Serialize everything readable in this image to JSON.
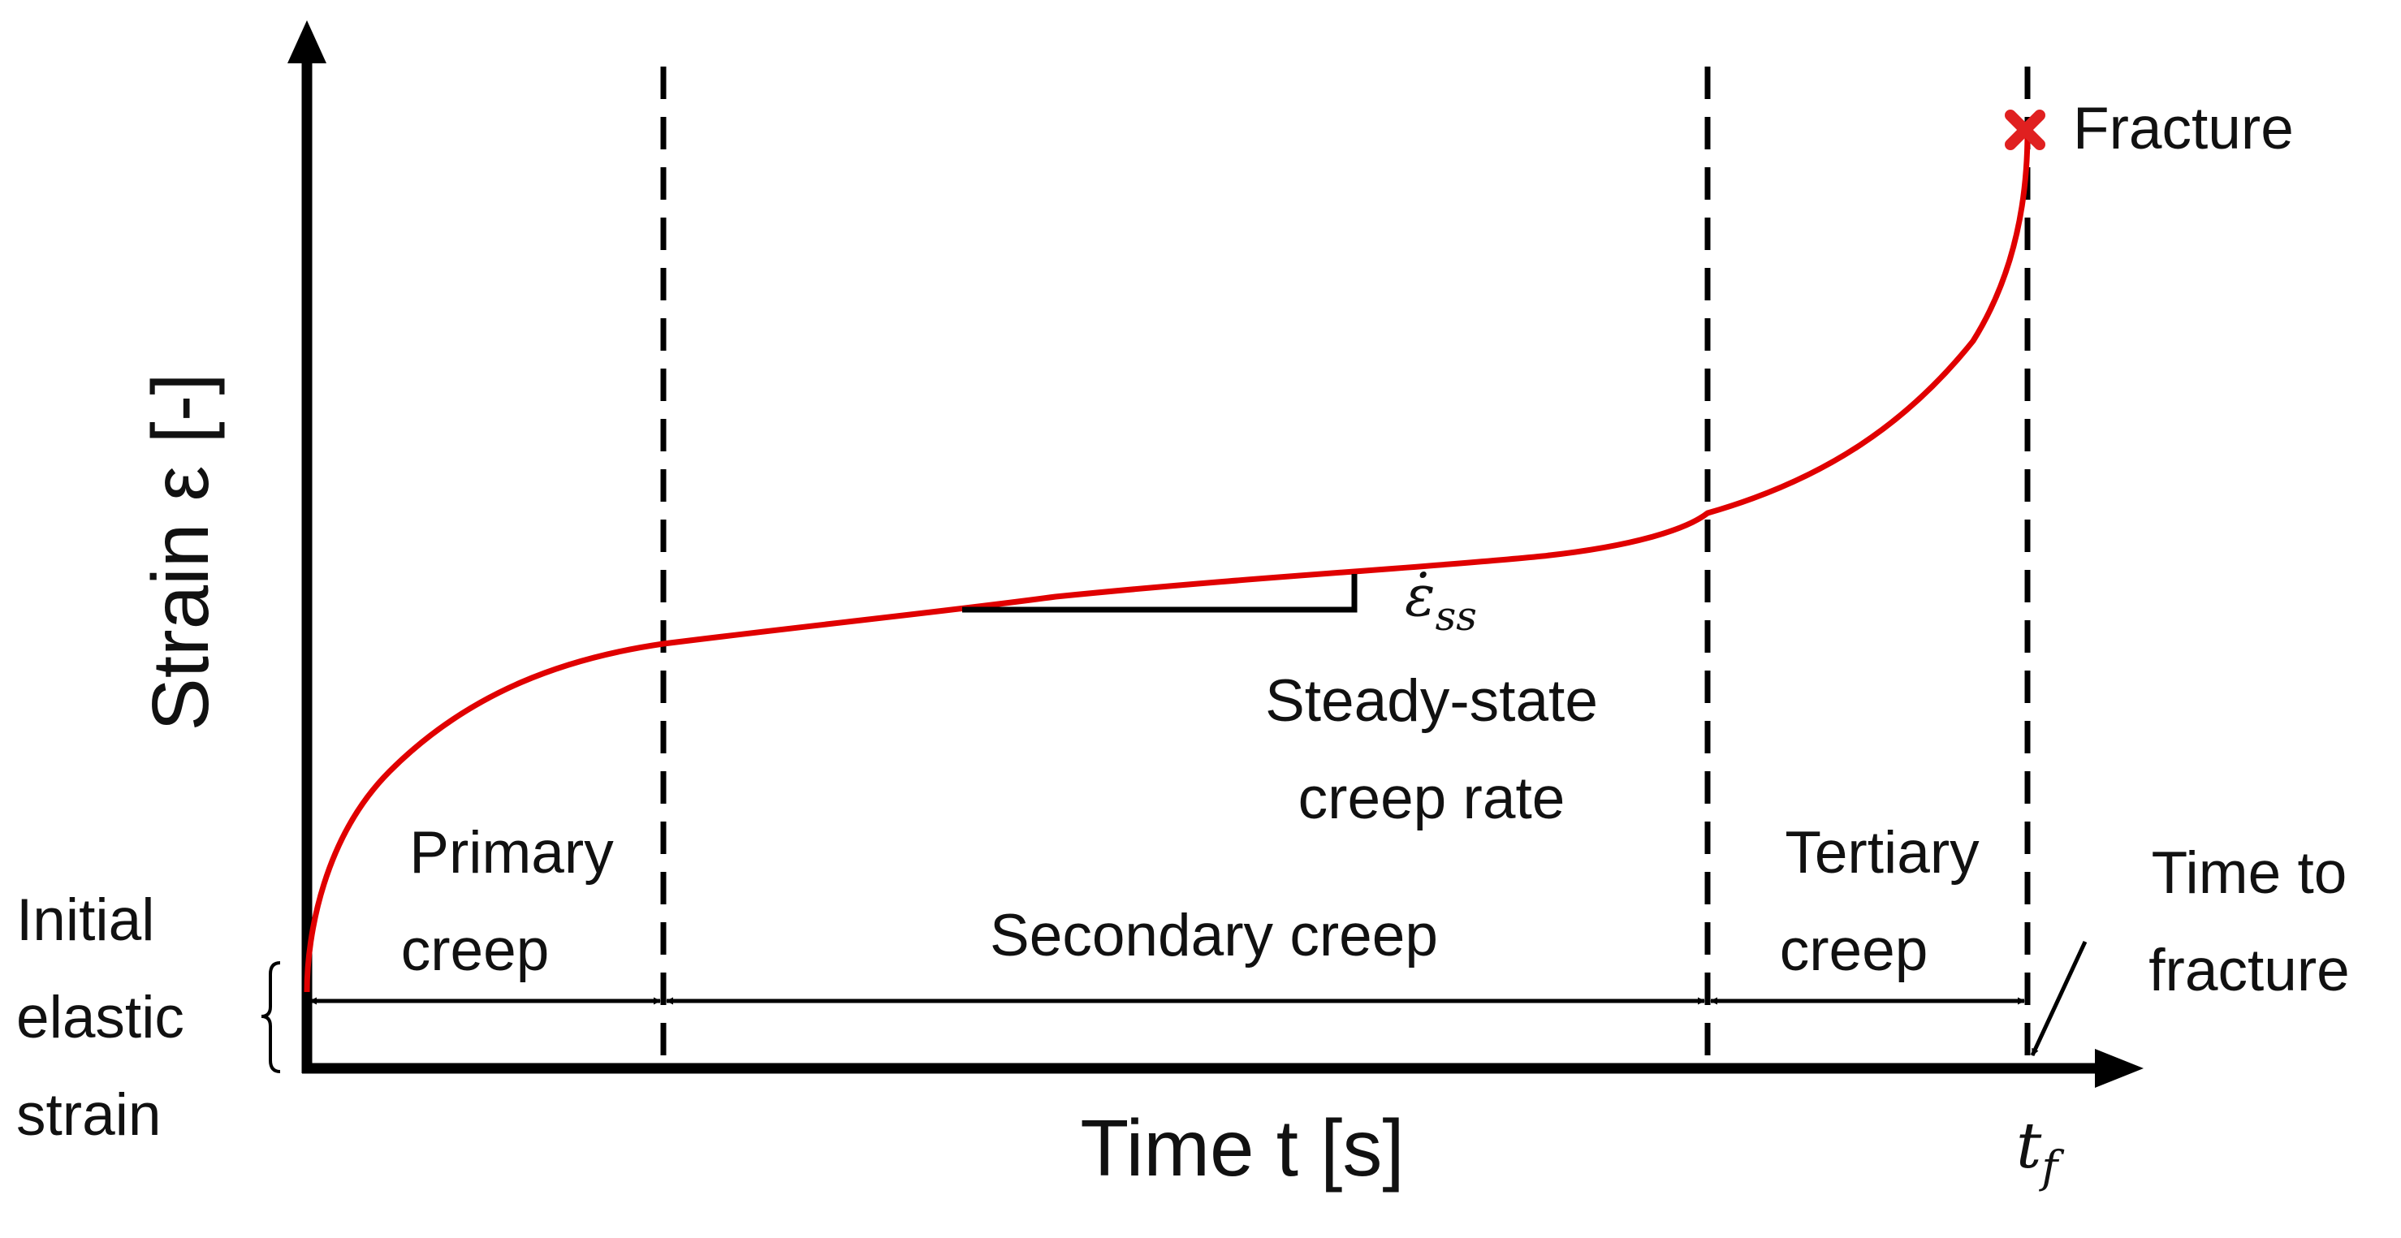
{
  "diagram": {
    "y_axis_title": "Strain ε [-]",
    "x_axis_title": "Time t [s]",
    "fracture_label": "Fracture",
    "rate_symbol_main": "ε̇",
    "rate_symbol_sub": "ss",
    "rate_label_line1": "Steady-state",
    "rate_label_line2": "creep rate",
    "primary_line1": "Primary",
    "primary_line2": "creep",
    "secondary": "Secondary creep",
    "tertiary_line1": "Tertiary",
    "tertiary_line2": "creep",
    "ttf_line1": "Time to",
    "ttf_line2": "fracture",
    "tf_main": "t",
    "tf_sub": "f",
    "initial_line1": "Initial",
    "initial_line2": "elastic",
    "initial_line3": "strain"
  },
  "colors": {
    "curve": "#e00000",
    "fracture_marker": "#e02020",
    "axes": "#000000"
  }
}
